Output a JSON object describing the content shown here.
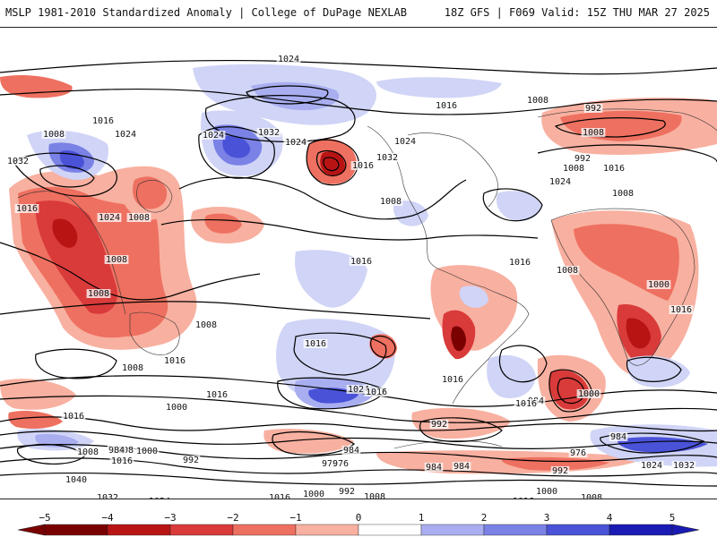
{
  "header": {
    "left_title": "MSLP 1981-2010 Standardized Anomaly | College of DuPage NEXLAB",
    "right_title": "18Z GFS | F069 Valid: 15Z THU MAR 27 2025"
  },
  "map": {
    "projection": "equirectangular-pacific-centered",
    "isobar_labels": [
      "1024",
      "1016",
      "1008",
      "1024",
      "1032",
      "1024",
      "1016",
      "1008",
      "1024",
      "1032",
      "1024",
      "1016",
      "1008",
      "1016",
      "1024",
      "1016",
      "1008",
      "992",
      "1008",
      "1016",
      "1032",
      "1008",
      "1024",
      "1008",
      "1016",
      "1008",
      "1008",
      "1008",
      "1016",
      "1000",
      "1008",
      "1016",
      "1016",
      "1016",
      "1024",
      "1016",
      "1008",
      "1016",
      "992",
      "1000",
      "984",
      "1008",
      "1000",
      "992",
      "984",
      "1000",
      "984",
      "1008",
      "1016",
      "992",
      "984",
      "976",
      "1040",
      "1032",
      "1024",
      "1016",
      "1000",
      "992",
      "976",
      "984",
      "1008",
      "1016",
      "992",
      "984",
      "1000",
      "1008",
      "1016",
      "1024",
      "1032",
      "976",
      "1016"
    ],
    "colors": {
      "neg5": "#7a0000",
      "neg4": "#b81414",
      "neg3": "#d93a3a",
      "neg2": "#ee7060",
      "neg1": "#f8b0a0",
      "zero": "#ffffff",
      "pos1": "#d0d4f6",
      "pos2": "#a8aef0",
      "pos3": "#7a82e6",
      "pos4": "#4a52d8",
      "pos5": "#1a1ab4"
    }
  },
  "colorbar": {
    "ticks": [
      "−5",
      "−4",
      "−3",
      "−2",
      "−1",
      "0",
      "1",
      "2",
      "3",
      "4",
      "5"
    ],
    "colors": [
      "#7a0000",
      "#b81414",
      "#d93a3a",
      "#ee7060",
      "#f8b0a0",
      "#ffffff",
      "#d0d4f6",
      "#a8aef0",
      "#7a82e6",
      "#4a52d8",
      "#1a1ab4"
    ]
  }
}
